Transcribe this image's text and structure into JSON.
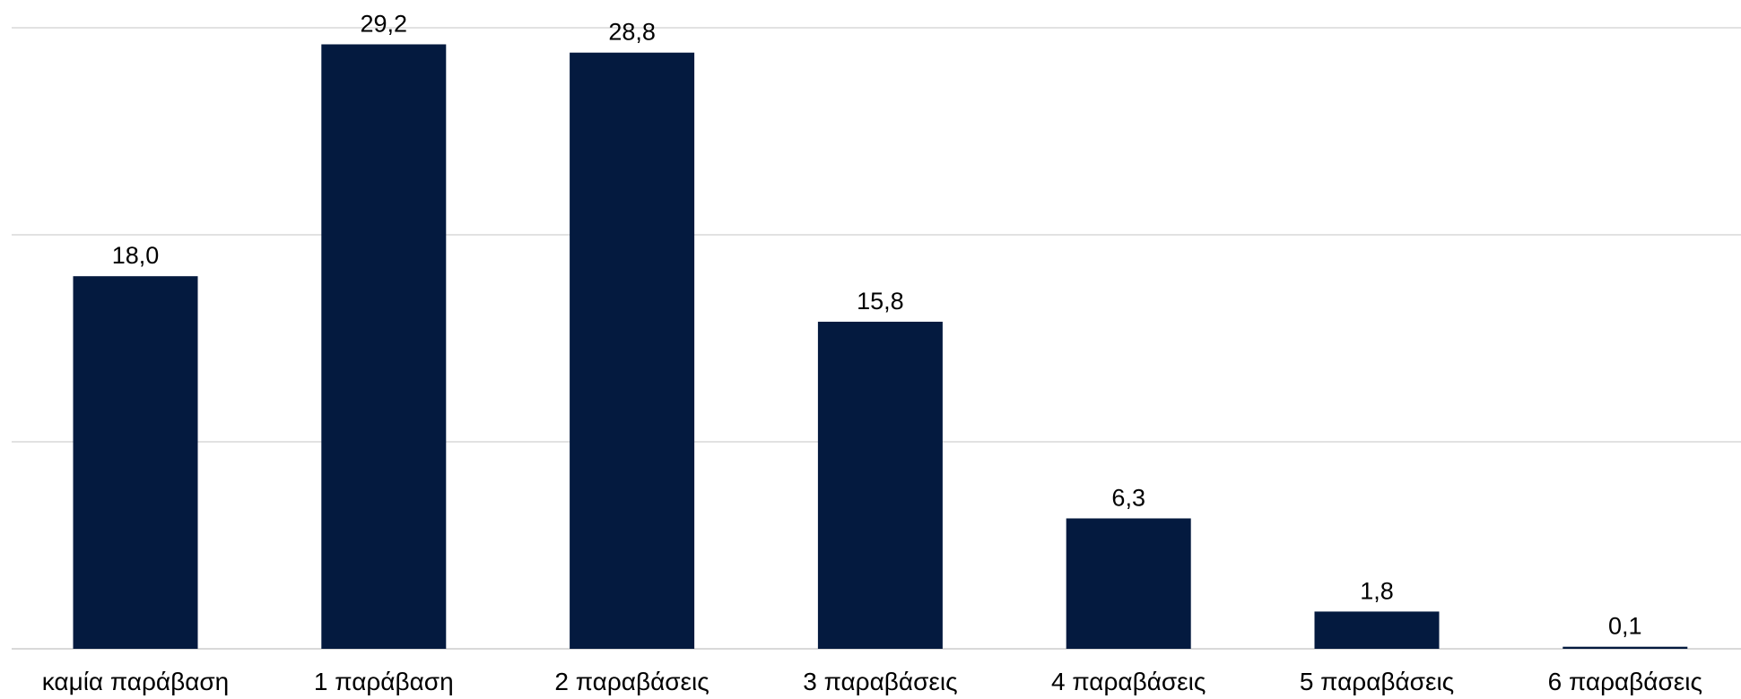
{
  "chart_data": {
    "type": "bar",
    "categories": [
      "καμία παράβαση",
      "1 παράβαση",
      "2 παραβάσεις",
      "3 παραβάσεις",
      "4 παραβάσεις",
      "5 παραβάσεις",
      "6 παραβάσεις"
    ],
    "values": [
      18.0,
      29.2,
      28.8,
      15.8,
      6.3,
      1.8,
      0.1
    ],
    "data_labels": [
      "18,0",
      "29,2",
      "28,8",
      "15,8",
      "6,3",
      "1,8",
      "0,1"
    ],
    "title": "",
    "xlabel": "",
    "ylabel": "",
    "ylim": [
      0,
      30
    ],
    "y_gridlines": [
      0,
      10,
      20,
      30
    ],
    "y_tick_labels_shown": false,
    "grid": true,
    "legend": "none",
    "colors": {
      "bar": "#041a3f",
      "grid": "#d9d9d9",
      "text": "#000000",
      "background": "#ffffff"
    }
  }
}
